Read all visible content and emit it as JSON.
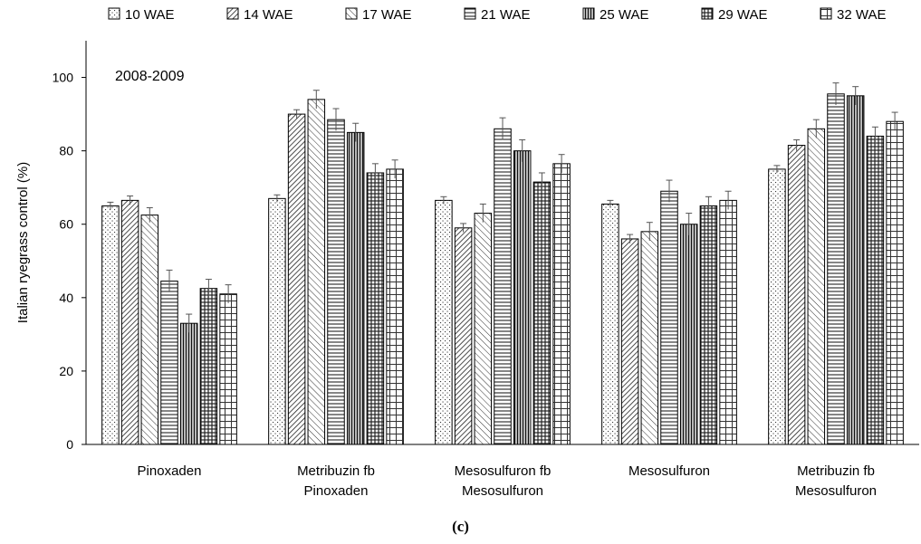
{
  "chart_data": {
    "type": "bar",
    "annotation": "2008-2009",
    "ylabel": "Italian ryegrass control (%)",
    "ylim": [
      0,
      110
    ],
    "yticks": [
      0,
      20,
      40,
      60,
      80,
      100
    ],
    "legend_position": "top",
    "error_bars": true,
    "categories": [
      [
        "Pinoxaden"
      ],
      [
        "Metribuzin fb",
        "Pinoxaden"
      ],
      [
        "Mesosulfuron fb",
        "Mesosulfuron"
      ],
      [
        "Mesosulfuron"
      ],
      [
        "Metribuzin fb",
        "Mesosulfuron"
      ]
    ],
    "series": [
      {
        "name": "10 WAE",
        "pattern": "dots",
        "values": [
          65,
          67,
          66.5,
          65.5,
          75
        ],
        "errors": [
          1,
          1,
          1,
          1,
          1
        ]
      },
      {
        "name": "14 WAE",
        "pattern": "diag-dense",
        "values": [
          66.5,
          90,
          59,
          56,
          81.5
        ],
        "errors": [
          1.2,
          1.2,
          1.2,
          1.2,
          1.5
        ]
      },
      {
        "name": "17 WAE",
        "pattern": "diag-light",
        "values": [
          62.5,
          94,
          63,
          58,
          86
        ],
        "errors": [
          2,
          2.5,
          2.5,
          2.5,
          2.5
        ]
      },
      {
        "name": "21 WAE",
        "pattern": "hlines",
        "values": [
          44.5,
          88.5,
          86,
          69,
          95.5
        ],
        "errors": [
          3,
          3,
          3,
          3,
          3
        ]
      },
      {
        "name": "25 WAE",
        "pattern": "vlines",
        "values": [
          33,
          85,
          80,
          60,
          95
        ],
        "errors": [
          2.5,
          2.5,
          3,
          3,
          2.5
        ]
      },
      {
        "name": "29 WAE",
        "pattern": "grid-dense",
        "values": [
          42.5,
          74,
          71.5,
          65,
          84
        ],
        "errors": [
          2.5,
          2.5,
          2.5,
          2.5,
          2.5
        ]
      },
      {
        "name": "32 WAE",
        "pattern": "grid-light",
        "values": [
          41,
          75,
          76.5,
          66.5,
          88
        ],
        "errors": [
          2.5,
          2.5,
          2.5,
          2.5,
          2.5
        ]
      }
    ]
  },
  "panel_label": "(c)"
}
